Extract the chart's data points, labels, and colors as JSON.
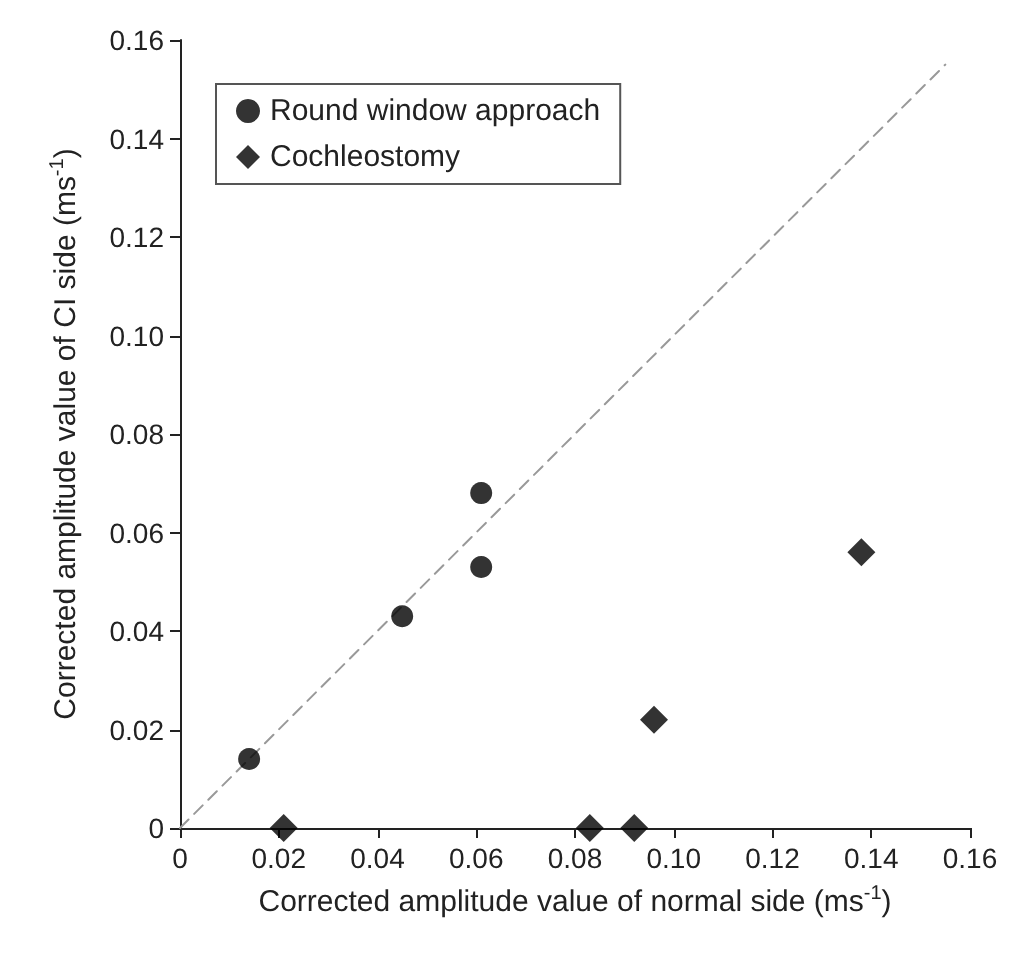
{
  "chart_data": {
    "type": "scatter",
    "xlabel": "Corrected amplitude value of normal side (ms$^{-1}$)",
    "ylabel": "Corrected amplitude value of CI side (ms$^{-1}$)",
    "series": [
      {
        "name": "Round window approach",
        "color": "#000000",
        "marker": "circle",
        "x": [
          0.014,
          0.045,
          0.061,
          0.061
        ],
        "values": [
          0.014,
          0.043,
          0.053,
          0.068
        ]
      },
      {
        "name": "Cochleostomy",
        "color": "#000000",
        "marker": "diamond",
        "x": [
          0.021,
          0.083,
          0.092,
          0.096,
          0.138
        ],
        "values": [
          0,
          0,
          0,
          0.022,
          0.056
        ]
      },
      {
        "type": "line",
        "color": "#999999",
        "line_style": "dashed",
        "marker": "none",
        "x": [
          0,
          0.155
        ],
        "values": [
          0,
          0.155
        ]
      }
    ],
    "xlim": [
      0,
      0.16
    ],
    "xticks": [
      0,
      {
        "value": 0.02,
        "label": "0.02"
      },
      {
        "value": 0.04,
        "label": "0.04"
      },
      {
        "value": 0.06,
        "label": "0.06"
      },
      {
        "value": 0.08,
        "label": "0.08"
      },
      {
        "value": 0.1,
        "label": "0.10"
      },
      {
        "value": 0.12,
        "label": "0.12"
      },
      {
        "value": 0.14,
        "label": "0.14"
      },
      {
        "value": 0.16,
        "label": "0.16"
      }
    ],
    "ylim": [
      0,
      0.16
    ],
    "yticks": [
      0,
      {
        "value": 0.02,
        "label": "0.02"
      },
      {
        "value": 0.04,
        "label": "0.04"
      },
      {
        "value": 0.06,
        "label": "0.06"
      },
      {
        "value": 0.08,
        "label": "0.08"
      },
      {
        "value": 0.1,
        "label": "0.10"
      },
      {
        "value": 0.12,
        "label": "0.12"
      },
      {
        "value": 0.14,
        "label": "0.14"
      },
      {
        "value": 0.16,
        "label": "0.16"
      }
    ],
    "grid": false,
    "legend": "top left"
  }
}
